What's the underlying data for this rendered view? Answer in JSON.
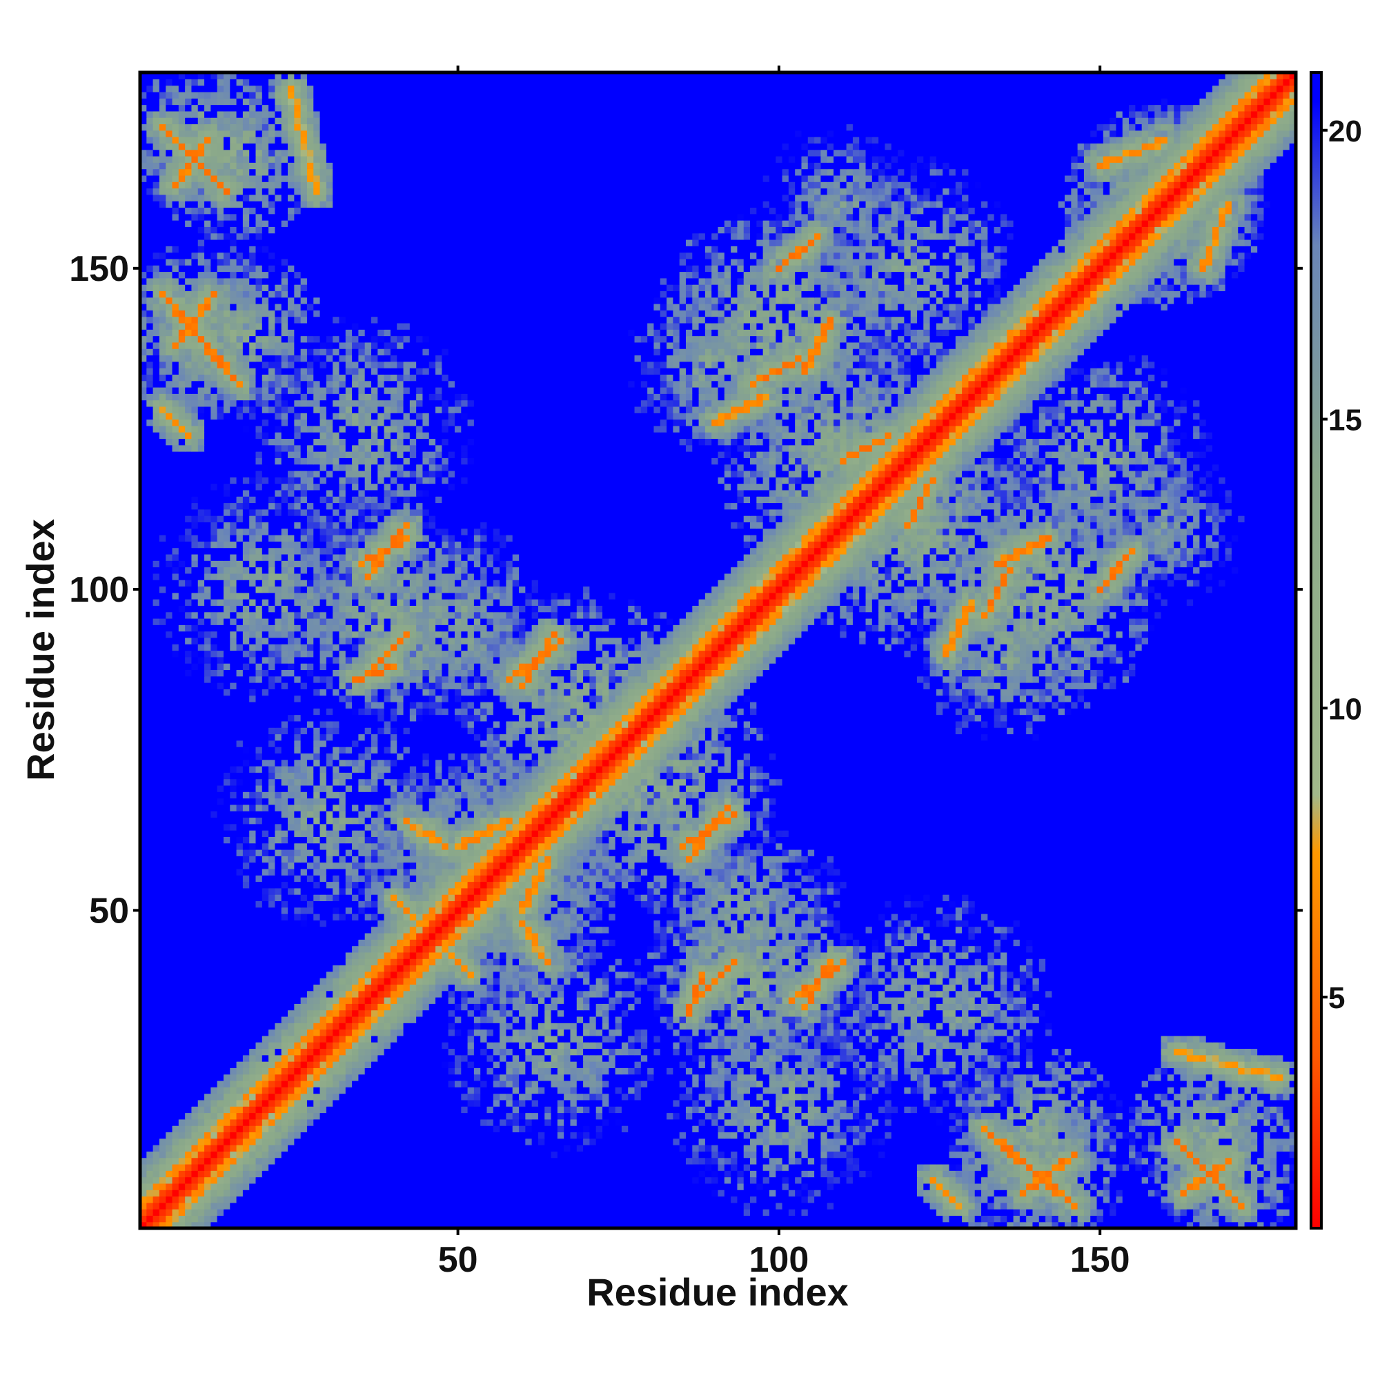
{
  "chart_data": {
    "type": "heatmap",
    "title": "",
    "xlabel": "Residue index",
    "ylabel": "Residue index",
    "n_residues": 180,
    "xlim": [
      1,
      180
    ],
    "ylim": [
      1,
      180
    ],
    "x_ticks": [
      50,
      100,
      150
    ],
    "x_tick_labels": [
      "50",
      "100",
      "150"
    ],
    "y_ticks": [
      50,
      100,
      150
    ],
    "y_tick_labels": [
      "50",
      "100",
      "150"
    ],
    "value_unit_hint": "pairwise distance",
    "clip_max": 21,
    "colorbar": {
      "range": [
        1,
        21
      ],
      "ticks": [
        5,
        10,
        15,
        20
      ],
      "tick_labels": [
        "5",
        "10",
        "15",
        "20"
      ],
      "stops": [
        {
          "value": 1,
          "color": "#ff0000"
        },
        {
          "value": 4,
          "color": "#ff5a00"
        },
        {
          "value": 7.5,
          "color": "#ff9900"
        },
        {
          "value": 8.5,
          "color": "#a0b88a"
        },
        {
          "value": 14,
          "color": "#8aa88a"
        },
        {
          "value": 18,
          "color": "#6a86b8"
        },
        {
          "value": 20.5,
          "color": "#0000ff"
        },
        {
          "value": 21,
          "color": "#0000ff"
        }
      ]
    },
    "background_value": 21,
    "diagonal_band": {
      "core_value": 3,
      "near_value": 6,
      "halo_value": 11,
      "width": 6
    },
    "contact_segments": [
      {
        "from": [
          4,
          172
        ],
        "to": [
          14,
          162
        ],
        "value": 7
      },
      {
        "from": [
          4,
          146
        ],
        "to": [
          16,
          132
        ],
        "value": 7
      },
      {
        "from": [
          4,
          128
        ],
        "to": [
          8,
          124
        ],
        "value": 8
      },
      {
        "from": [
          35,
          104
        ],
        "to": [
          42,
          108
        ],
        "value": 7
      },
      {
        "from": [
          34,
          86
        ],
        "to": [
          40,
          88
        ],
        "value": 7
      },
      {
        "from": [
          58,
          86
        ],
        "to": [
          66,
          92
        ],
        "value": 7
      },
      {
        "from": [
          50,
          60
        ],
        "to": [
          58,
          64
        ],
        "value": 8
      },
      {
        "from": [
          40,
          52
        ],
        "to": [
          46,
          46
        ],
        "value": 8
      },
      {
        "from": [
          60,
          48
        ],
        "to": [
          64,
          42
        ],
        "value": 8
      },
      {
        "from": [
          87,
          36
        ],
        "to": [
          93,
          42
        ],
        "value": 7
      },
      {
        "from": [
          102,
          36
        ],
        "to": [
          110,
          42
        ],
        "value": 7
      },
      {
        "from": [
          85,
          60
        ],
        "to": [
          93,
          65
        ],
        "value": 7
      },
      {
        "from": [
          96,
          132
        ],
        "to": [
          103,
          136
        ],
        "value": 7
      },
      {
        "from": [
          100,
          150
        ],
        "to": [
          106,
          155
        ],
        "value": 7
      },
      {
        "from": [
          110,
          120
        ],
        "to": [
          117,
          124
        ],
        "value": 7
      },
      {
        "from": [
          134,
          104
        ],
        "to": [
          142,
          108
        ],
        "value": 7
      },
      {
        "from": [
          126,
          90
        ],
        "to": [
          130,
          98
        ],
        "value": 8
      },
      {
        "from": [
          138,
          6
        ],
        "to": [
          146,
          12
        ],
        "value": 7
      },
      {
        "from": [
          163,
          6
        ],
        "to": [
          170,
          11
        ],
        "value": 7
      },
      {
        "from": [
          162,
          28
        ],
        "to": [
          178,
          24
        ],
        "value": 9
      },
      {
        "from": [
          150,
          166
        ],
        "to": [
          160,
          170
        ],
        "value": 8
      }
    ],
    "contact_patches": [
      {
        "center": [
          10,
          170
        ],
        "radius": 12,
        "value": 12
      },
      {
        "center": [
          15,
          140
        ],
        "radius": 14,
        "value": 12
      },
      {
        "center": [
          20,
          100
        ],
        "radius": 18,
        "value": 13
      },
      {
        "center": [
          50,
          95
        ],
        "radius": 16,
        "value": 13
      },
      {
        "center": [
          30,
          65
        ],
        "radius": 18,
        "value": 13
      },
      {
        "center": [
          55,
          55
        ],
        "radius": 20,
        "value": 12
      },
      {
        "center": [
          80,
          70
        ],
        "radius": 20,
        "value": 12
      },
      {
        "center": [
          95,
          40
        ],
        "radius": 16,
        "value": 12
      },
      {
        "center": [
          125,
          35
        ],
        "radius": 18,
        "value": 13
      },
      {
        "center": [
          140,
          10
        ],
        "radius": 14,
        "value": 12
      },
      {
        "center": [
          168,
          15
        ],
        "radius": 14,
        "value": 12
      },
      {
        "center": [
          100,
          140
        ],
        "radius": 20,
        "value": 12
      },
      {
        "center": [
          120,
          110
        ],
        "radius": 20,
        "value": 12
      },
      {
        "center": [
          150,
          120
        ],
        "radius": 18,
        "value": 13
      },
      {
        "center": [
          160,
          160
        ],
        "radius": 16,
        "value": 12
      },
      {
        "center": [
          135,
          90
        ],
        "radius": 14,
        "value": 13
      },
      {
        "center": [
          110,
          160
        ],
        "radius": 14,
        "value": 14
      }
    ]
  }
}
